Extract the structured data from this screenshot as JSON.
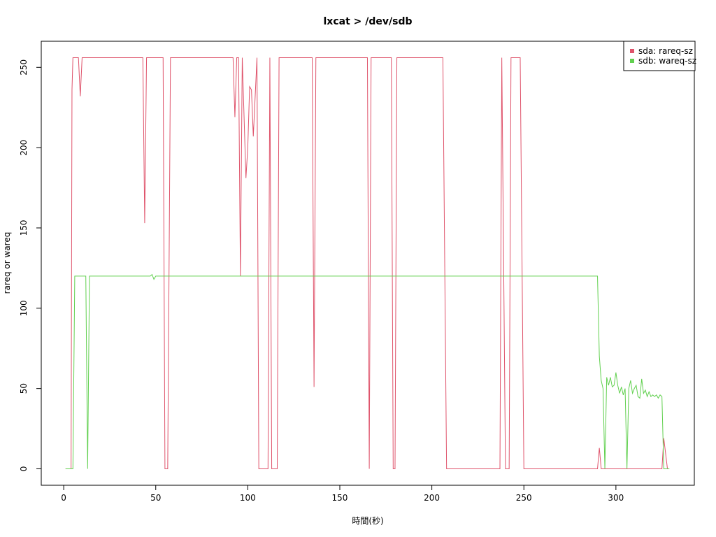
{
  "chart_data": {
    "type": "line",
    "title": "lxcat > /dev/sdb",
    "x_label": "時間(秒)",
    "y_label": "rareq or wareq",
    "xlim": [
      -12.2,
      342.6
    ],
    "ylim": [
      -10.24,
      266.24
    ],
    "xticks": [
      0,
      50,
      100,
      150,
      200,
      250,
      300
    ],
    "yticks": [
      0,
      50,
      100,
      150,
      200,
      250
    ],
    "legend": "top-right",
    "series": [
      {
        "name": "sda: rareq-sz",
        "color": "#DF536B",
        "x": [
          1,
          4,
          4.5,
          5,
          8,
          9,
          10,
          43,
          44,
          45,
          54,
          55,
          56.5,
          58,
          92,
          93,
          94,
          95,
          96,
          97,
          99,
          100,
          101,
          102,
          103,
          105,
          106,
          111,
          112,
          113,
          116,
          117,
          135,
          136,
          137,
          165,
          166,
          167,
          178,
          179,
          180,
          181,
          206,
          208,
          237,
          238,
          240,
          242,
          243,
          248,
          250,
          290,
          291,
          292,
          325,
          326,
          328,
          329
        ],
        "values": [
          0,
          0,
          236,
          256,
          256,
          232,
          256,
          256,
          153,
          256,
          256,
          0,
          0,
          256,
          256,
          219,
          256,
          256,
          120,
          256,
          181,
          200,
          238,
          236,
          207,
          256,
          0,
          0,
          256,
          0,
          0,
          256,
          256,
          51,
          256,
          256,
          0,
          256,
          256,
          0,
          0,
          256,
          256,
          0,
          0,
          256,
          0,
          0,
          256,
          256,
          0,
          0,
          13,
          0,
          0,
          19,
          0,
          0
        ]
      },
      {
        "name": "sdb: wareq-sz",
        "color": "#61D04F",
        "x": [
          1,
          5,
          6,
          12,
          13,
          14,
          47,
          48,
          49,
          50,
          290,
          291,
          292,
          293,
          294,
          295,
          296,
          297,
          298,
          299,
          300,
          301,
          302,
          303,
          304,
          305,
          306,
          307,
          308,
          309,
          310,
          311,
          312,
          313,
          314,
          315,
          316,
          317,
          318,
          319,
          320,
          321,
          322,
          323,
          324,
          325,
          326,
          329
        ],
        "values": [
          0,
          0,
          120,
          120,
          0,
          120,
          120,
          121,
          118,
          120,
          120,
          70,
          55,
          50,
          0,
          57,
          52,
          57,
          51,
          52,
          60,
          52,
          47,
          51,
          46,
          50,
          0,
          50,
          55,
          47,
          50,
          52,
          45,
          44,
          56,
          47,
          49,
          45,
          48,
          45,
          46,
          45,
          46,
          44,
          46,
          45,
          0,
          0
        ]
      }
    ]
  }
}
